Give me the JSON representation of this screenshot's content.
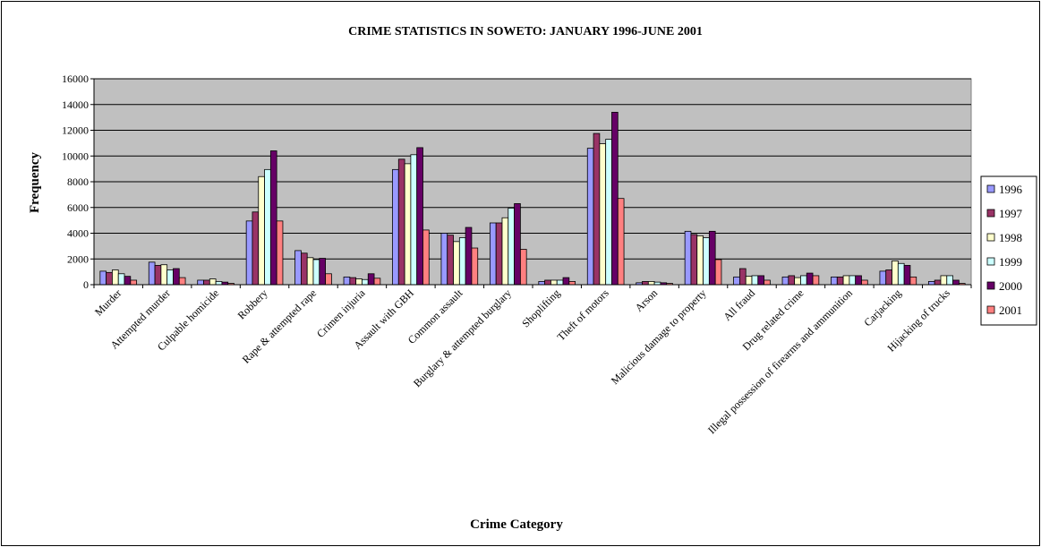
{
  "chart_data": {
    "type": "bar",
    "title": "CRIME STATISTICS IN SOWETO: JANUARY 1996-JUNE 2001",
    "xlabel": "Crime Category",
    "ylabel": "Frequency",
    "ylim": [
      0,
      16000
    ],
    "yticks": [
      0,
      2000,
      4000,
      6000,
      8000,
      10000,
      12000,
      14000,
      16000
    ],
    "grid": true,
    "legend_position": "right",
    "plot_background": "#c0c0c0",
    "categories": [
      "Murder",
      "Attempted murder",
      "Culpable homicide",
      "Robbery",
      "Rape & attempted rape",
      "Crimen injuria",
      "Assault with GBH",
      "Common assault",
      "Burglary & attempted burglary",
      "Shoplifting",
      "Theft of motors",
      "Arson",
      "Malicious damage to property",
      "All fraud",
      "Drug related crime",
      "Illegal possession of firearms and ammunition",
      "Carjacking",
      "Hijacking of trucks"
    ],
    "series": [
      {
        "name": "1996",
        "color": "#9999ff",
        "values": [
          1050,
          1750,
          350,
          4950,
          2650,
          600,
          8950,
          4000,
          4800,
          250,
          10600,
          150,
          4150,
          600,
          600,
          600,
          1050,
          250
        ]
      },
      {
        "name": "1997",
        "color": "#993366",
        "values": [
          950,
          1500,
          350,
          5650,
          2450,
          550,
          9750,
          3850,
          4800,
          350,
          11750,
          250,
          3900,
          1250,
          700,
          600,
          1150,
          350
        ]
      },
      {
        "name": "1998",
        "color": "#ffffcc",
        "values": [
          1150,
          1550,
          450,
          8400,
          2100,
          450,
          9400,
          3350,
          5200,
          350,
          10950,
          250,
          3800,
          650,
          550,
          700,
          1850,
          700
        ]
      },
      {
        "name": "1999",
        "color": "#ccffff",
        "values": [
          850,
          1150,
          250,
          8950,
          1950,
          400,
          10100,
          3650,
          5950,
          350,
          11300,
          200,
          3650,
          700,
          700,
          700,
          1650,
          700
        ]
      },
      {
        "name": "2000",
        "color": "#660066",
        "values": [
          650,
          1250,
          200,
          10400,
          2050,
          850,
          10650,
          4450,
          6300,
          550,
          13400,
          150,
          4150,
          700,
          900,
          700,
          1500,
          350
        ]
      },
      {
        "name": "2001",
        "color": "#ff8080",
        "values": [
          350,
          550,
          100,
          4950,
          850,
          500,
          4250,
          2850,
          2750,
          250,
          6700,
          100,
          1950,
          350,
          700,
          350,
          600,
          100
        ]
      }
    ]
  }
}
